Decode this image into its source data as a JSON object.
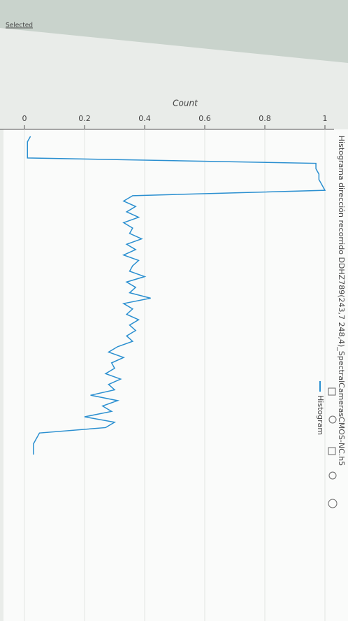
{
  "tab_label": "Selected",
  "chart_data": {
    "type": "line",
    "title": "Histograma dirección recorrido DDHZ789(243,7 248,4)_SpectralCamerasCMOS-NC.h5",
    "ylabel": "Count",
    "categories": [
      null,
      null,
      null,
      null,
      null,
      null,
      null,
      null,
      null,
      null,
      null,
      null,
      null,
      null,
      null,
      null,
      null,
      null,
      null,
      null,
      null,
      null,
      null,
      null,
      null,
      null,
      null,
      null,
      null,
      null,
      null,
      null,
      null,
      null,
      null,
      null,
      null,
      null,
      null,
      null,
      null,
      null,
      null,
      null,
      null,
      null,
      null,
      null,
      null,
      null,
      null,
      null,
      null,
      null,
      null,
      null,
      null,
      null,
      null,
      null
    ],
    "series": [
      {
        "name": "Histogram",
        "color": "#2a8fd0",
        "values": [
          0.02,
          0.01,
          0.01,
          0.01,
          0.01,
          0.97,
          0.97,
          0.98,
          0.98,
          0.99,
          1,
          0.36,
          0.33,
          0.37,
          0.34,
          0.38,
          0.33,
          0.36,
          0.35,
          0.39,
          0.34,
          0.37,
          0.33,
          0.38,
          0.36,
          0.35,
          0.4,
          0.34,
          0.37,
          0.35,
          0.42,
          0.33,
          0.36,
          0.34,
          0.38,
          0.35,
          0.37,
          0.34,
          0.36,
          0.31,
          0.28,
          0.33,
          0.29,
          0.3,
          0.27,
          0.32,
          0.28,
          0.3,
          0.22,
          0.31,
          0.26,
          0.29,
          0.2,
          0.3,
          0.27,
          0.05,
          0.04,
          0.03,
          0.03,
          0.03
        ]
      }
    ],
    "ylim": [
      0,
      1
    ],
    "yticks": [
      0,
      0.2,
      0.4,
      0.6,
      0.8,
      1
    ],
    "grid": true,
    "legend": "top-right"
  }
}
